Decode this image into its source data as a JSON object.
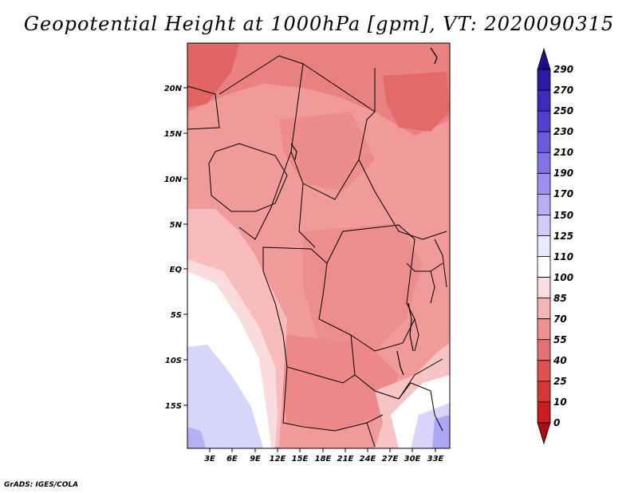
{
  "title": "Geopotential Height at 1000hPa [gpm], VT: 2020090315",
  "credit": "GrADS: IGES/COLA",
  "map": {
    "lat_labels": [
      "20N",
      "15N",
      "10N",
      "5N",
      "EQ",
      "5S",
      "10S",
      "15S"
    ],
    "lon_labels": [
      "3E",
      "6E",
      "9E",
      "12E",
      "15E",
      "18E",
      "21E",
      "24E",
      "27E",
      "30E",
      "33E"
    ]
  },
  "colorbar": {
    "labels": [
      "290",
      "270",
      "250",
      "230",
      "210",
      "190",
      "170",
      "150",
      "125",
      "110",
      "100",
      "85",
      "70",
      "55",
      "40",
      "25",
      "10",
      "0"
    ],
    "colors": [
      "#1c0f8c",
      "#2a1aa8",
      "#3a2cc0",
      "#5040d2",
      "#6a5ae0",
      "#8474ea",
      "#9e90f0",
      "#b8aef6",
      "#d2ccfa",
      "#eaeaff",
      "#ffffff",
      "#fcdcdc",
      "#f7b4b4",
      "#f09090",
      "#e87070",
      "#e05050",
      "#d83636",
      "#c81e1e",
      "#ab0f0f"
    ]
  }
}
